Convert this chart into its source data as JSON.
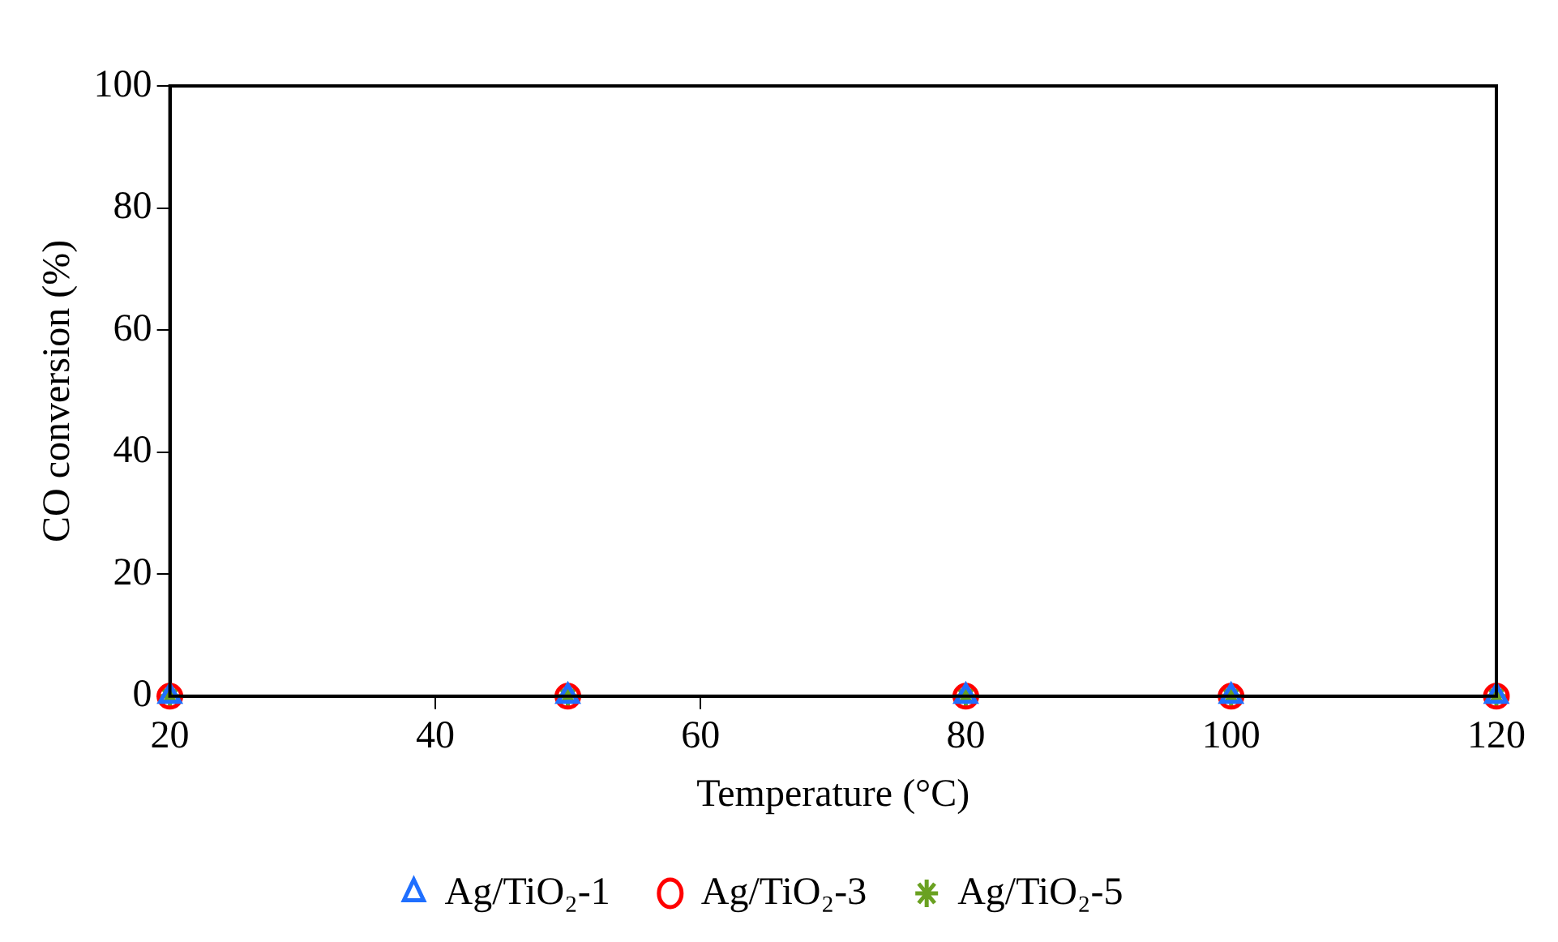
{
  "chart_data": {
    "type": "scatter",
    "xlabel": "Temperature (°C)",
    "ylabel": "CO conversion (%)",
    "x": [
      20,
      50,
      80,
      100,
      120
    ],
    "series": [
      {
        "name": "Ag/TiO₂-1",
        "color": "#1f6fff",
        "marker": "triangle",
        "values": [
          0,
          0,
          0,
          0,
          0
        ]
      },
      {
        "name": "Ag/TiO₂-3",
        "color": "#ff0000",
        "marker": "circle",
        "values": [
          0,
          0,
          0,
          0,
          0
        ]
      },
      {
        "name": "Ag/TiO₂-5",
        "color": "#6aa121",
        "marker": "cross",
        "values": [
          0,
          0,
          0,
          0,
          0
        ]
      }
    ],
    "xlim": [
      20,
      120
    ],
    "xticks": [
      20,
      40,
      60,
      80,
      100,
      120
    ],
    "ylim": [
      0,
      100
    ],
    "yticks": [
      0,
      20,
      40,
      60,
      80,
      100
    ],
    "grid": false,
    "legend": "bottom"
  }
}
